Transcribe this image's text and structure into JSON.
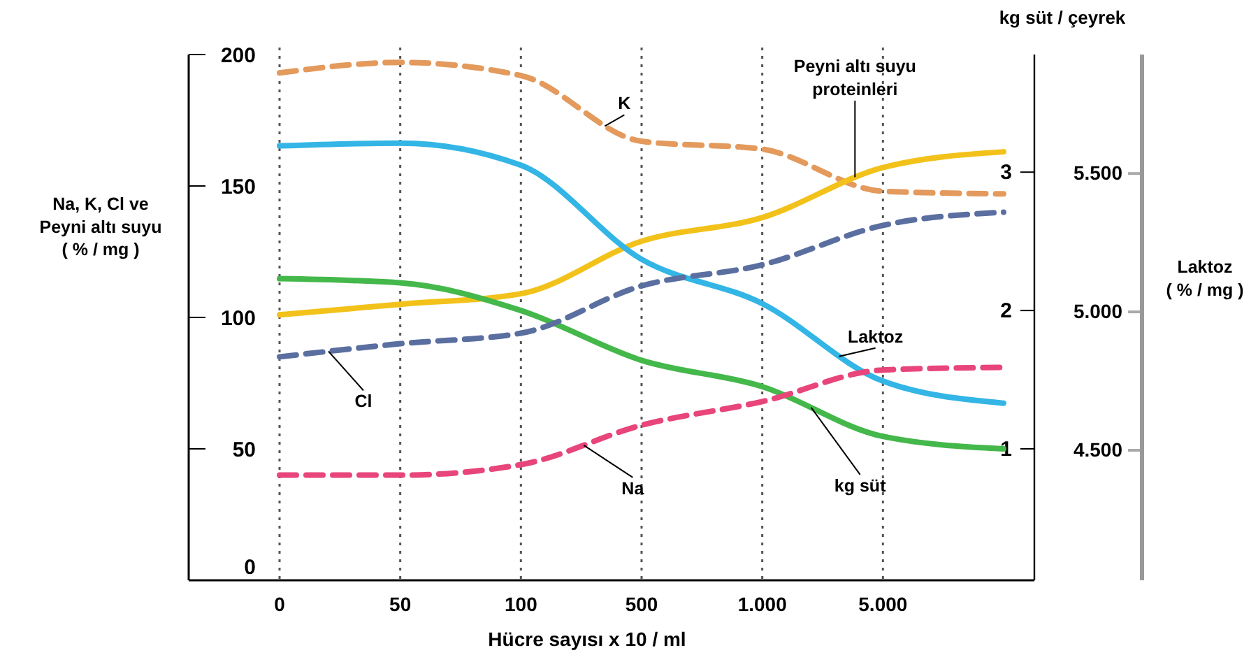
{
  "chart_data": {
    "type": "line",
    "xlabel": "Hücre sayısı x 10 / ml",
    "ylabel": "Na, K, Cl ve Peyni altı suyu ( % / mg )",
    "y2label": "kg süt / çeyrek",
    "y3label": "Laktoz ( % / mg )",
    "categories": [
      "0",
      "50",
      "100",
      "500",
      "1.000",
      "5.000",
      null
    ],
    "ylim": [
      0,
      200
    ],
    "yticks": [
      0,
      50,
      100,
      150,
      200
    ],
    "y2lim": [
      0.05,
      3.85
    ],
    "y2ticks": [
      1,
      2,
      3
    ],
    "y3lim": [
      4030,
      5930
    ],
    "y3ticks": [
      {
        "value": 4500,
        "label": "4.500"
      },
      {
        "value": 5000,
        "label": "5.000"
      },
      {
        "value": 5500,
        "label": "5.500"
      }
    ],
    "grid": "x",
    "legend": false,
    "marker": "none",
    "series": [
      {
        "name": "K",
        "color": "#e39a5c",
        "line_style": "dashed",
        "values": [
          193,
          197,
          192,
          167,
          164,
          148,
          147
        ]
      },
      {
        "name": "Peyni altı suyu proteinleri",
        "color": "#f2c21a",
        "line_style": "solid",
        "values": [
          101,
          105,
          109,
          129,
          138,
          157,
          163
        ]
      },
      {
        "name": "Laktoz",
        "color": "#33b5e5",
        "line_style": "solid",
        "axis": "y3",
        "values": [
          5600,
          5610,
          5530,
          5190,
          5030,
          4750,
          4670
        ]
      },
      {
        "name": "kg süt",
        "color": "#44b84a",
        "line_style": "solid",
        "axis": "y2",
        "values": [
          2.23,
          2.2,
          2.0,
          1.64,
          1.45,
          1.09,
          1.0
        ]
      },
      {
        "name": "Cl",
        "color": "#5a6fa0",
        "line_style": "dashed",
        "values": [
          85,
          90,
          94,
          112,
          120,
          135,
          140
        ]
      },
      {
        "name": "Na",
        "color": "#e8457a",
        "line_style": "dashed",
        "values": [
          40,
          40,
          44,
          59,
          68,
          80,
          81
        ]
      }
    ]
  }
}
